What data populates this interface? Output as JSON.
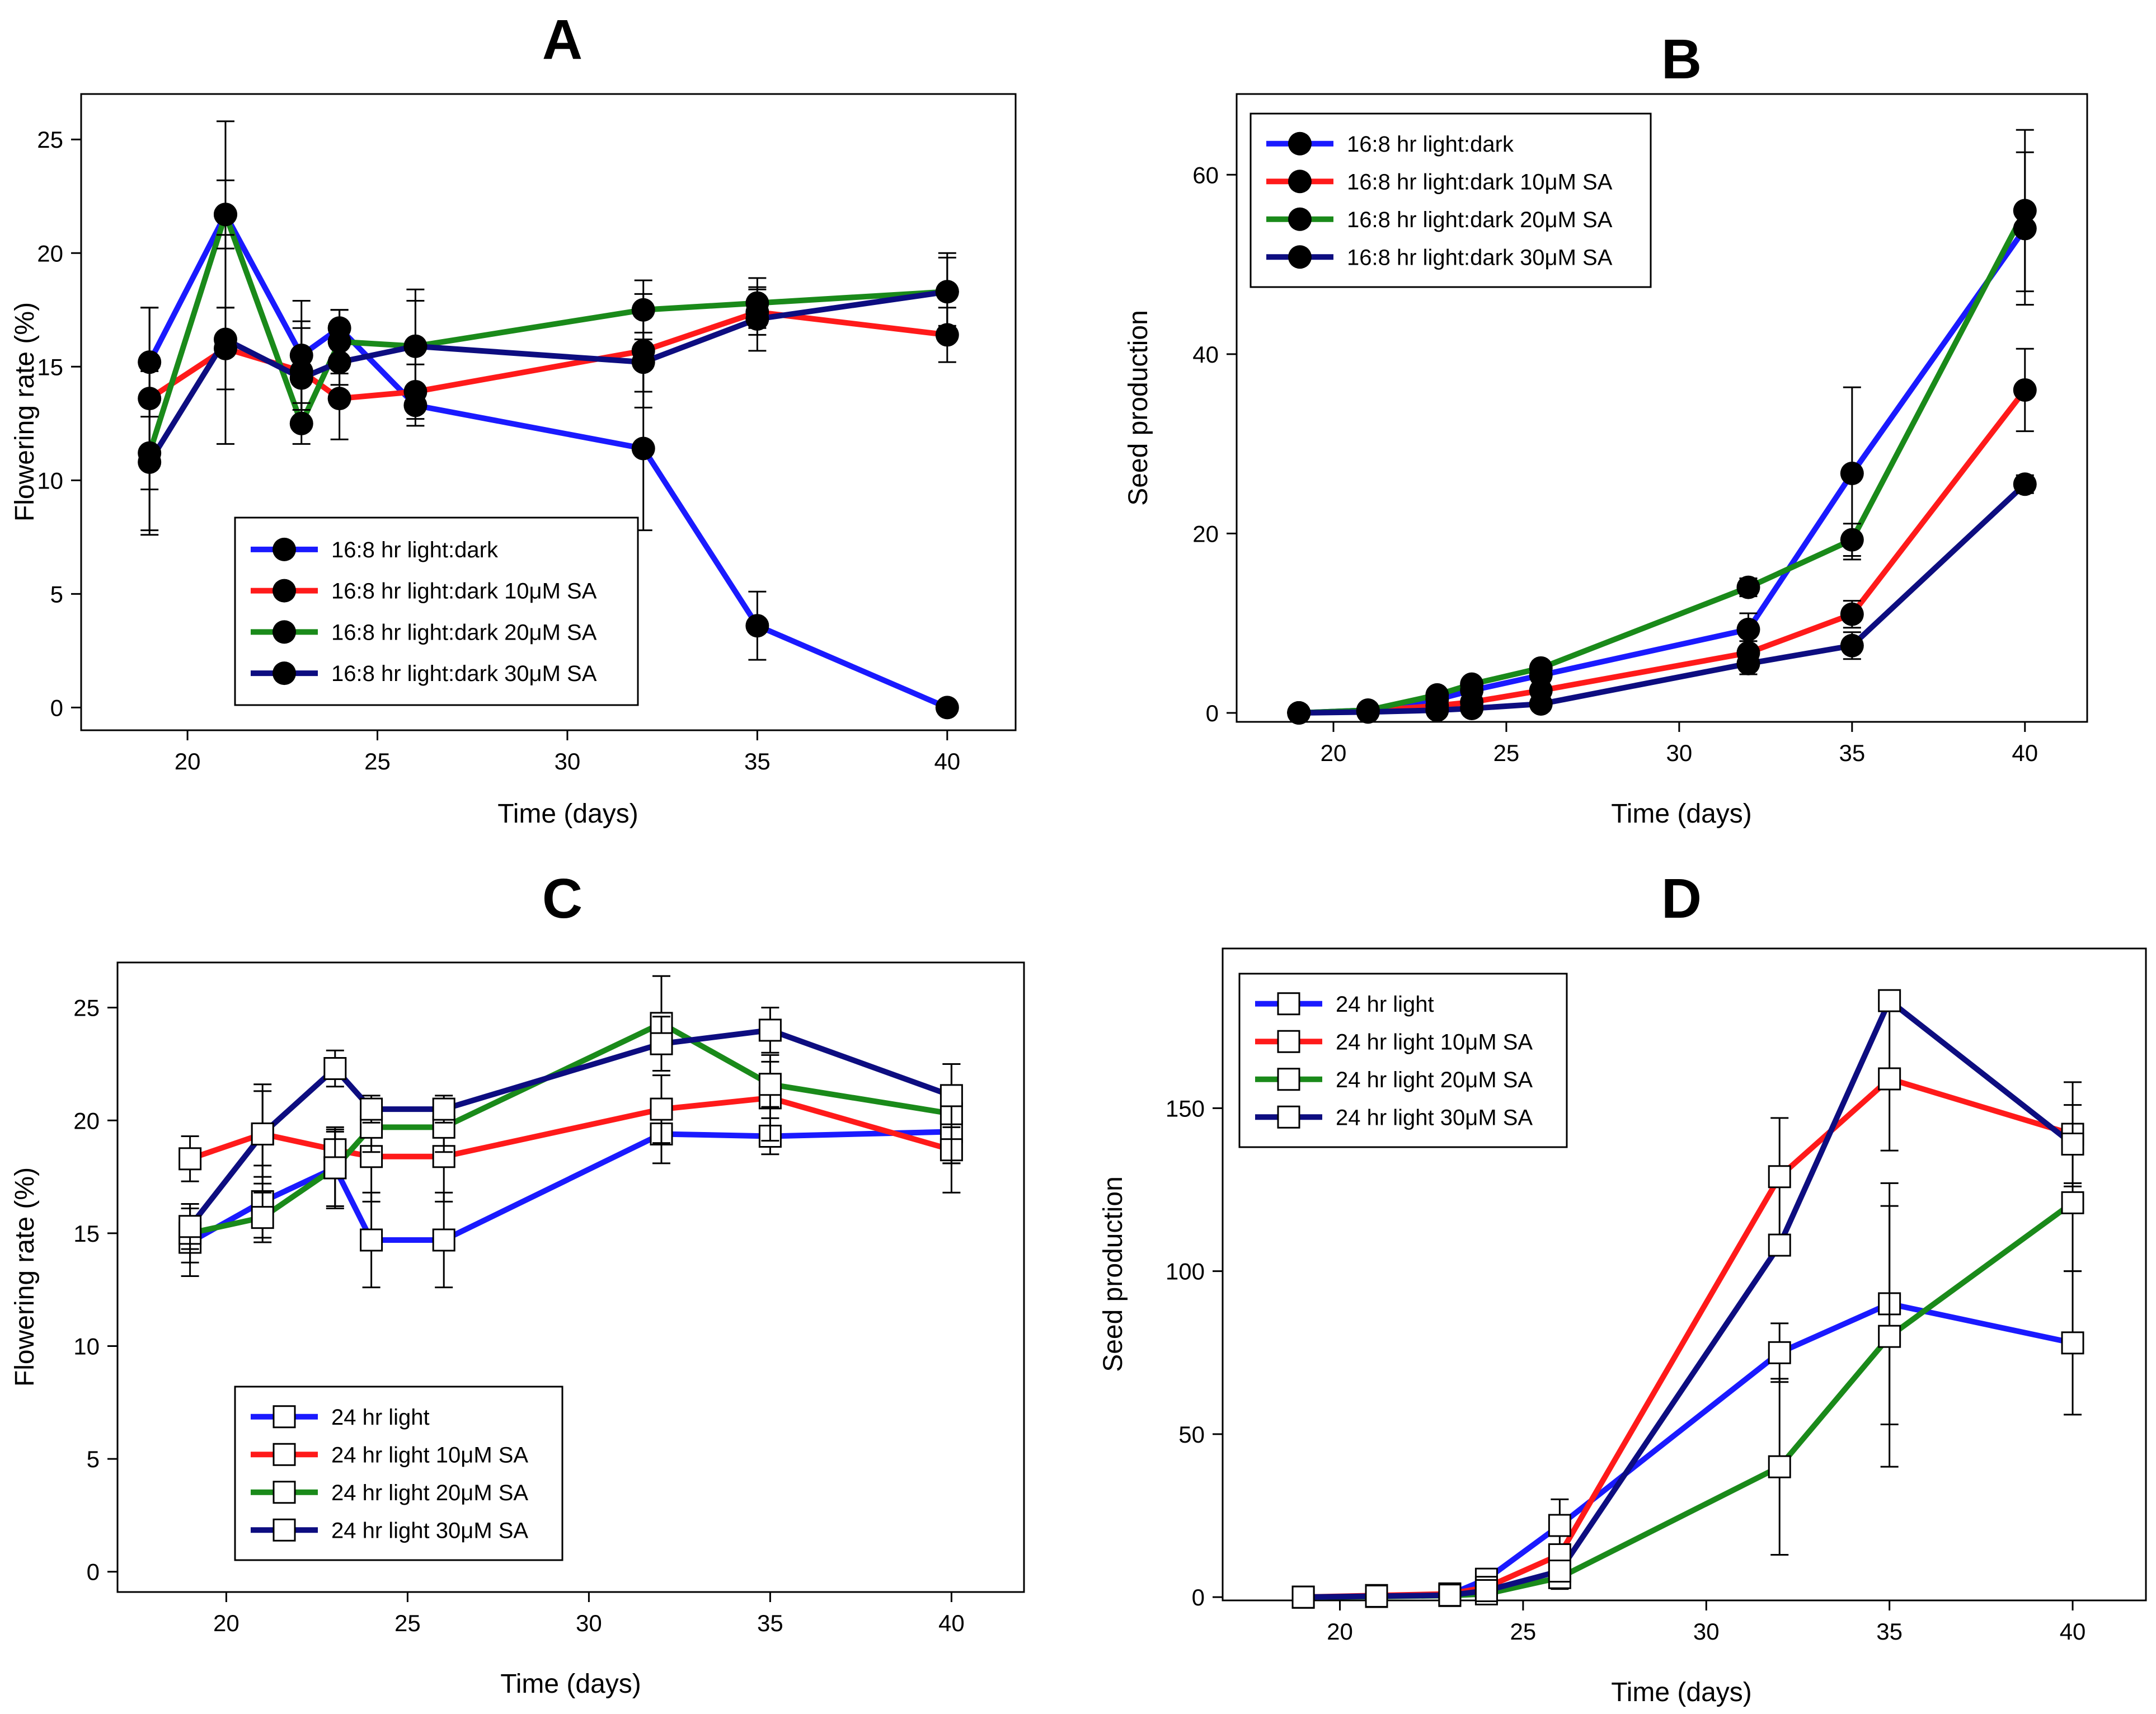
{
  "chart_data": [
    {
      "id": "A",
      "type": "line",
      "title": "A",
      "xlabel": "Time (days)",
      "ylabel": "Flowering rate (%)",
      "xlim": [
        17.2,
        41.8
      ],
      "ylim": [
        -1,
        27
      ],
      "xticks": [
        20,
        25,
        30,
        35,
        40
      ],
      "yticks": [
        0,
        5,
        10,
        15,
        20,
        25
      ],
      "marker": "circle",
      "legend_position": "bottom-left",
      "series": [
        {
          "name": "16:8 hr light:dark",
          "color": "#1a1aff",
          "x": [
            19,
            21,
            23,
            24,
            26,
            32,
            35,
            40
          ],
          "y": [
            15.2,
            21.7,
            15.5,
            16.7,
            13.3,
            11.4,
            3.6,
            0.0
          ],
          "err": [
            2.4,
            1.5,
            2.4,
            0.8,
            0.9,
            3.6,
            1.5,
            0.0
          ]
        },
        {
          "name": "16:8 hr light:dark 10μM SA",
          "color": "#ff1a1a",
          "x": [
            19,
            21,
            23,
            24,
            26,
            32,
            35,
            40
          ],
          "y": [
            13.6,
            15.8,
            14.8,
            13.6,
            13.9,
            15.7,
            17.4,
            16.4
          ],
          "err": [
            4.0,
            1.8,
            2.2,
            1.8,
            1.2,
            2.5,
            1.0,
            1.2
          ]
        },
        {
          "name": "16:8 hr light:dark 20μM SA",
          "color": "#1a8a1a",
          "x": [
            19,
            21,
            23,
            24,
            26,
            32,
            35,
            40
          ],
          "y": [
            11.2,
            21.7,
            12.5,
            16.1,
            15.9,
            17.5,
            17.8,
            18.3
          ],
          "err": [
            3.6,
            4.1,
            0.9,
            1.4,
            2.0,
            1.3,
            1.1,
            1.7
          ]
        },
        {
          "name": "16:8 hr light:dark 30μM SA",
          "color": "#0d0d80",
          "x": [
            19,
            21,
            23,
            24,
            26,
            32,
            35,
            40
          ],
          "y": [
            10.8,
            16.2,
            14.5,
            15.2,
            15.9,
            15.2,
            17.1,
            18.3
          ],
          "err": [
            3.0,
            4.6,
            2.2,
            1.0,
            2.5,
            1.3,
            1.4,
            1.5
          ]
        }
      ]
    },
    {
      "id": "B",
      "type": "line",
      "title": "B",
      "xlabel": "Time (days)",
      "ylabel": "Seed production",
      "xlim": [
        17.2,
        41.8
      ],
      "ylim": [
        -1,
        69
      ],
      "xticks": [
        20,
        25,
        30,
        35,
        40
      ],
      "yticks": [
        0,
        20,
        40,
        60
      ],
      "marker": "circle",
      "legend_position": "top-left",
      "series": [
        {
          "name": "16:8 hr light:dark",
          "color": "#1a1aff",
          "x": [
            19,
            21,
            23,
            24,
            26,
            32,
            35,
            40
          ],
          "y": [
            0.0,
            0.3,
            1.5,
            2.5,
            4.2,
            9.3,
            26.7,
            54.0
          ],
          "err": [
            0,
            0,
            0.5,
            0.5,
            0.8,
            1.8,
            9.6,
            8.5
          ]
        },
        {
          "name": "16:8 hr light:dark 10μM SA",
          "color": "#ff1a1a",
          "x": [
            19,
            21,
            23,
            24,
            26,
            32,
            35,
            40
          ],
          "y": [
            0.0,
            0.2,
            0.8,
            1.2,
            2.5,
            6.7,
            11.0,
            36.0
          ],
          "err": [
            0,
            0,
            0.3,
            0.4,
            0.6,
            1.3,
            1.5,
            4.6
          ]
        },
        {
          "name": "16:8 hr light:dark 20μM SA",
          "color": "#1a8a1a",
          "x": [
            19,
            21,
            23,
            24,
            26,
            32,
            35,
            40
          ],
          "y": [
            0.0,
            0.3,
            2.0,
            3.2,
            5.0,
            14.0,
            19.3,
            56.0
          ],
          "err": [
            0,
            0,
            0.5,
            0.6,
            0.8,
            1.0,
            1.8,
            9.0
          ]
        },
        {
          "name": "16:8 hr light:dark 30μM SA",
          "color": "#0d0d80",
          "x": [
            19,
            21,
            23,
            24,
            26,
            32,
            35,
            40
          ],
          "y": [
            0.0,
            0.1,
            0.3,
            0.5,
            1.0,
            5.5,
            7.5,
            25.5
          ],
          "err": [
            0,
            0,
            0.2,
            0.3,
            0.4,
            1.2,
            1.5,
            1.0
          ]
        }
      ]
    },
    {
      "id": "C",
      "type": "line",
      "title": "C",
      "xlabel": "Time (days)",
      "ylabel": "Flowering rate (%)",
      "xlim": [
        17.0,
        42.0
      ],
      "ylim": [
        -0.9,
        27.0
      ],
      "xticks": [
        20,
        25,
        30,
        35,
        40
      ],
      "yticks": [
        0,
        5,
        10,
        15,
        20,
        25
      ],
      "marker": "square",
      "legend_position": "bottom-left",
      "series": [
        {
          "name": "24 hr light",
          "color": "#1a1aff",
          "x": [
            19,
            21,
            23,
            24,
            26,
            32,
            35,
            40
          ],
          "y": [
            14.6,
            16.4,
            17.9,
            14.7,
            14.7,
            19.4,
            19.3,
            19.5
          ],
          "err": [
            1.5,
            1.6,
            1.7,
            2.1,
            2.1,
            1.3,
            0.8,
            1.4
          ]
        },
        {
          "name": "24 hr light 10μM SA",
          "color": "#ff1a1a",
          "x": [
            19,
            21,
            23,
            24,
            26,
            32,
            35,
            40
          ],
          "y": [
            18.3,
            19.4,
            18.7,
            18.4,
            18.4,
            20.5,
            21.0,
            18.7
          ],
          "err": [
            1.0,
            2.2,
            0.8,
            2.0,
            2.0,
            1.5,
            1.9,
            1.9
          ]
        },
        {
          "name": "24 hr light 20μM SA",
          "color": "#1a8a1a",
          "x": [
            19,
            21,
            23,
            24,
            26,
            32,
            35,
            40
          ],
          "y": [
            15.0,
            15.7,
            17.9,
            19.7,
            19.7,
            24.3,
            21.6,
            20.3
          ],
          "err": [
            1.3,
            1.1,
            1.8,
            1.1,
            1.1,
            2.1,
            1.0,
            2.2
          ]
        },
        {
          "name": "24 hr light 30μM SA",
          "color": "#0d0d80",
          "x": [
            19,
            21,
            23,
            24,
            26,
            32,
            35,
            40
          ],
          "y": [
            15.3,
            19.4,
            22.3,
            20.5,
            20.5,
            23.4,
            24.0,
            21.1
          ],
          "err": [
            1.0,
            1.9,
            0.8,
            0.6,
            0.6,
            1.2,
            1.0,
            1.4
          ]
        }
      ]
    },
    {
      "id": "D",
      "type": "line",
      "title": "D",
      "xlabel": "Time (days)",
      "ylabel": "Seed production",
      "xlim": [
        16.8,
        42.0
      ],
      "ylim": [
        -1,
        199
      ],
      "xticks": [
        20,
        25,
        30,
        35,
        40
      ],
      "yticks": [
        0,
        50,
        100,
        150
      ],
      "marker": "square",
      "legend_position": "top-left",
      "series": [
        {
          "name": "24 hr light",
          "color": "#1a1aff",
          "x": [
            19,
            21,
            23,
            24,
            26,
            32,
            35,
            40
          ],
          "y": [
            0.0,
            0.3,
            0.8,
            5.5,
            22.0,
            75.0,
            90.0,
            78.0
          ],
          "err": [
            0,
            0,
            0.5,
            1.5,
            8.0,
            9.0,
            37.0,
            22.0
          ]
        },
        {
          "name": "24 hr light 10μM SA",
          "color": "#ff1a1a",
          "x": [
            19,
            21,
            23,
            24,
            26,
            32,
            35,
            40
          ],
          "y": [
            0.0,
            0.5,
            1.0,
            3.0,
            13.0,
            129.0,
            159.0,
            142.0
          ],
          "err": [
            0,
            0,
            0.5,
            1.0,
            3.0,
            18.0,
            22.0,
            16.0
          ]
        },
        {
          "name": "24 hr light 20μM SA",
          "color": "#1a8a1a",
          "x": [
            19,
            21,
            23,
            24,
            26,
            32,
            35,
            40
          ],
          "y": [
            0.0,
            0.2,
            0.5,
            1.0,
            6.0,
            40.0,
            80.0,
            121.0
          ],
          "err": [
            0,
            0,
            0.3,
            0.5,
            3.5,
            27.0,
            40.0,
            21.0
          ]
        },
        {
          "name": "24 hr light 30μM SA",
          "color": "#0d0d80",
          "x": [
            19,
            21,
            23,
            24,
            26,
            32,
            35,
            40
          ],
          "y": [
            0.0,
            0.3,
            0.6,
            2.0,
            8.0,
            108.0,
            183.0,
            139.0
          ],
          "err": [
            0,
            0,
            0.3,
            0.6,
            3.0,
            3.0,
            1.0,
            12.0
          ]
        }
      ]
    }
  ]
}
